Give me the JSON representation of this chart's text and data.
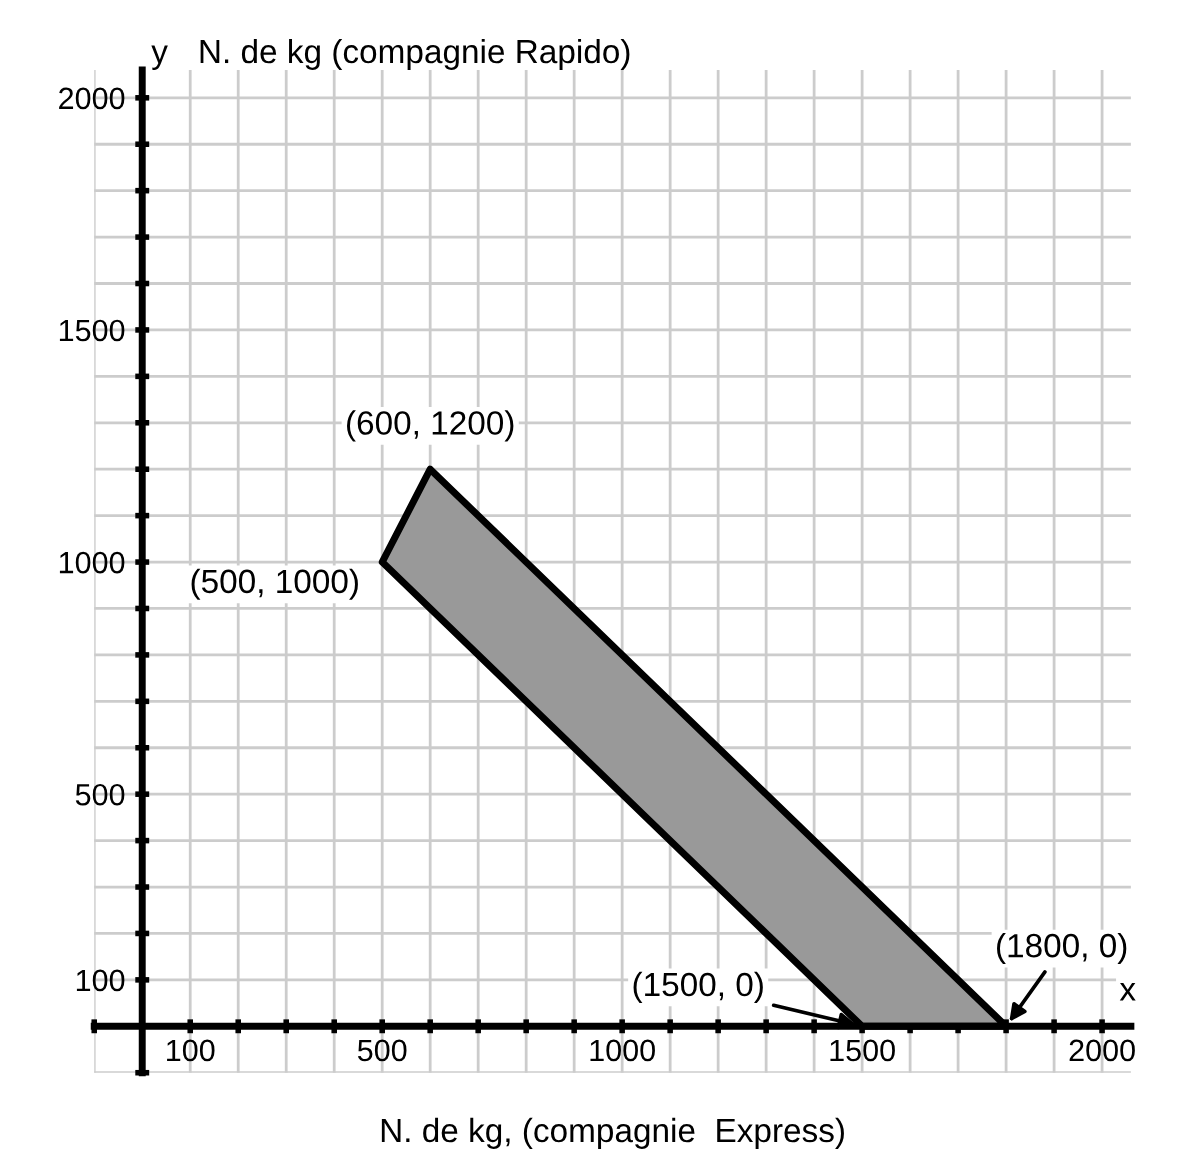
{
  "chart_data": {
    "type": "area",
    "xlabel": "N. de kg, (compagnie  Express)",
    "ylabel": "N. de kg (compagnie Rapido)",
    "series": [
      {
        "color": "#999999",
        "x": [
          500,
          600,
          1800,
          1500,
          500
        ],
        "values": [
          1000,
          1200,
          0,
          0,
          1000
        ]
      }
    ],
    "xlim": [
      -100,
      2060
    ],
    "ylim": [
      -100,
      2060
    ],
    "xticks": [
      {
        "value": -100,
        "label": null
      },
      100,
      {
        "value": 200,
        "label": null
      },
      {
        "value": 300,
        "label": null
      },
      {
        "value": 400,
        "label": null
      },
      500,
      {
        "value": 600,
        "label": null
      },
      {
        "value": 700,
        "label": null
      },
      {
        "value": 800,
        "label": null
      },
      {
        "value": 900,
        "label": null
      },
      1000,
      {
        "value": 1100,
        "label": null
      },
      {
        "value": 1200,
        "label": null
      },
      {
        "value": 1300,
        "label": null
      },
      {
        "value": 1400,
        "label": null
      },
      1500,
      {
        "value": 1600,
        "label": null
      },
      {
        "value": 1700,
        "label": null
      },
      {
        "value": 1800,
        "label": null
      },
      {
        "value": 1900,
        "label": null
      },
      2000
    ],
    "yticks": [
      {
        "value": -100,
        "label": null
      },
      100,
      {
        "value": 200,
        "label": null
      },
      {
        "value": 300,
        "label": null
      },
      {
        "value": 400,
        "label": null
      },
      500,
      {
        "value": 600,
        "label": null
      },
      {
        "value": 700,
        "label": null
      },
      {
        "value": 800,
        "label": null
      },
      {
        "value": 900,
        "label": null
      },
      1000,
      {
        "value": 1100,
        "label": null
      },
      {
        "value": 1200,
        "label": null
      },
      {
        "value": 1300,
        "label": null
      },
      {
        "value": 1400,
        "label": null
      },
      1500,
      {
        "value": 1600,
        "label": null
      },
      {
        "value": 1700,
        "label": null
      },
      {
        "value": 1800,
        "label": null
      },
      {
        "value": 1900,
        "label": null
      },
      2000
    ],
    "grid": true,
    "annotations": [
      {
        "text": "(600, 1200)",
        "x": 600,
        "y": 1200
      },
      {
        "text": "(500, 1000)",
        "x": 500,
        "y": 1000
      },
      {
        "text": "(1500, 0)",
        "x": 1500,
        "y": 0
      },
      {
        "text": "(1800, 0)",
        "x": 1800,
        "y": 0
      },
      "x",
      "y"
    ]
  }
}
